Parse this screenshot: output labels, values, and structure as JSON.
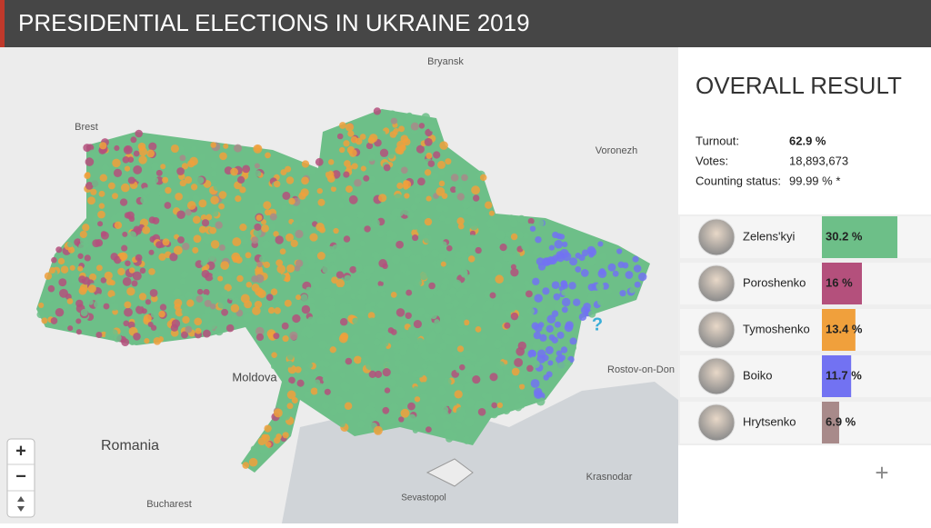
{
  "header": {
    "title": "PRESIDENTIAL ELECTIONS IN UKRAINE 2019"
  },
  "map": {
    "labels": [
      "Bryansk",
      "Brest",
      "Voronezh",
      "Moldova",
      "Romania",
      "Rostov-on-Don",
      "Krasnodar",
      "Sevastopol",
      "Bucharest"
    ],
    "zoom_in": "+",
    "zoom_out": "−",
    "unknown_marker": "?"
  },
  "panel": {
    "title": "OVERALL RESULT",
    "stats": [
      {
        "label": "Turnout:",
        "value": "62.9 %"
      },
      {
        "label": "Votes:",
        "value": "18,893,673"
      },
      {
        "label": "Counting status:",
        "value": "99.99 % *"
      }
    ],
    "candidates": [
      {
        "name": "Zelens'kyi",
        "value": 30.2,
        "label": "30.2 %",
        "color": "#6dbf88"
      },
      {
        "name": "Poroshenko",
        "value": 16,
        "label": "16 %",
        "color": "#b4507c"
      },
      {
        "name": "Tymoshenko",
        "value": 13.4,
        "label": "13.4 %",
        "color": "#f0a03c"
      },
      {
        "name": "Boiko",
        "value": 11.7,
        "label": "11.7 %",
        "color": "#7272f2"
      },
      {
        "name": "Hrytsenko",
        "value": 6.9,
        "label": "6.9 %",
        "color": "#a88a8a"
      }
    ],
    "more": "+"
  }
}
